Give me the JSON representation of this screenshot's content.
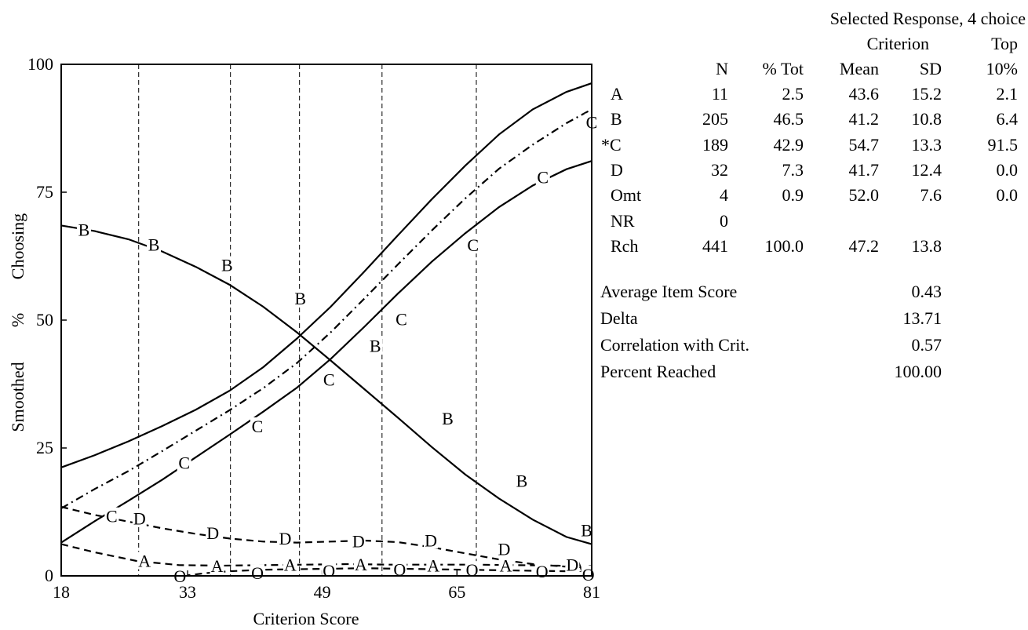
{
  "chart_data": {
    "type": "line",
    "xlabel": "Criterion Score",
    "ylabel_parts": [
      "Smoothed",
      "%",
      "Choosing"
    ],
    "xlim": [
      18,
      81
    ],
    "ylim": [
      0,
      100
    ],
    "x_ticks": [
      18,
      33,
      49,
      65,
      81
    ],
    "y_ticks": [
      0,
      25,
      50,
      75,
      100
    ],
    "vertical_dividers": [
      27.2,
      38.1,
      46.3,
      56.1,
      67.3
    ],
    "confidence_band": {
      "upper": [
        [
          18,
          21.2
        ],
        [
          22,
          23.6
        ],
        [
          26,
          26.3
        ],
        [
          30,
          29.3
        ],
        [
          34,
          32.5
        ],
        [
          38,
          36.2
        ],
        [
          42,
          40.8
        ],
        [
          46,
          46.4
        ],
        [
          50,
          52.6
        ],
        [
          54,
          59.5
        ],
        [
          58,
          66.6
        ],
        [
          62,
          73.6
        ],
        [
          66,
          80.2
        ],
        [
          70,
          86.3
        ],
        [
          74,
          91.2
        ],
        [
          78,
          94.6
        ],
        [
          81,
          96.3
        ]
      ],
      "lower": [
        [
          18,
          6.5
        ],
        [
          22,
          10.7
        ],
        [
          26,
          14.7
        ],
        [
          30,
          18.8
        ],
        [
          34,
          23.2
        ],
        [
          38,
          27.6
        ],
        [
          42,
          32.1
        ],
        [
          46,
          36.8
        ],
        [
          50,
          42.4
        ],
        [
          54,
          48.7
        ],
        [
          58,
          55.2
        ],
        [
          62,
          61.4
        ],
        [
          66,
          67.0
        ],
        [
          70,
          72.1
        ],
        [
          74,
          76.3
        ],
        [
          78,
          79.5
        ],
        [
          81,
          81.1
        ]
      ]
    },
    "series": [
      {
        "name": "A",
        "style": "dashed",
        "values": [
          [
            18,
            6.2
          ],
          [
            22,
            4.6
          ],
          [
            27,
            2.9
          ],
          [
            32,
            2.1
          ],
          [
            37,
            2.0
          ],
          [
            42,
            2.1
          ],
          [
            47,
            2.2
          ],
          [
            52,
            2.3
          ],
          [
            57,
            2.2
          ],
          [
            62,
            2.2
          ],
          [
            67,
            2.2
          ],
          [
            72,
            2.1
          ],
          [
            77,
            2.0
          ],
          [
            81,
            1.9
          ]
        ]
      },
      {
        "name": "B",
        "style": "solid",
        "values": [
          [
            18,
            68.5
          ],
          [
            22,
            67.4
          ],
          [
            26,
            65.8
          ],
          [
            30,
            63.4
          ],
          [
            34,
            60.4
          ],
          [
            38,
            56.9
          ],
          [
            42,
            52.6
          ],
          [
            46,
            47.6
          ],
          [
            50,
            42.1
          ],
          [
            54,
            36.5
          ],
          [
            58,
            30.9
          ],
          [
            62,
            25.2
          ],
          [
            66,
            19.8
          ],
          [
            70,
            15.1
          ],
          [
            74,
            11.0
          ],
          [
            78,
            7.6
          ],
          [
            81,
            6.2
          ]
        ]
      },
      {
        "name": "C",
        "style": "dashdot",
        "values": [
          [
            18,
            13.2
          ],
          [
            22,
            17.0
          ],
          [
            26,
            20.5
          ],
          [
            30,
            24.4
          ],
          [
            34,
            28.4
          ],
          [
            38,
            32.4
          ],
          [
            42,
            36.7
          ],
          [
            46,
            41.6
          ],
          [
            50,
            47.6
          ],
          [
            54,
            54.2
          ],
          [
            58,
            60.9
          ],
          [
            62,
            67.5
          ],
          [
            66,
            73.8
          ],
          [
            70,
            79.6
          ],
          [
            74,
            84.3
          ],
          [
            78,
            88.5
          ],
          [
            81,
            91.2
          ]
        ]
      },
      {
        "name": "D",
        "style": "dashed",
        "values": [
          [
            18,
            13.5
          ],
          [
            22,
            11.9
          ],
          [
            26,
            10.6
          ],
          [
            30,
            9.3
          ],
          [
            34,
            8.2
          ],
          [
            38,
            7.3
          ],
          [
            42,
            6.7
          ],
          [
            46,
            6.5
          ],
          [
            50,
            6.7
          ],
          [
            54,
            6.9
          ],
          [
            58,
            6.6
          ],
          [
            62,
            5.6
          ],
          [
            66,
            4.4
          ],
          [
            70,
            3.2
          ],
          [
            74,
            2.3
          ],
          [
            78,
            1.8
          ],
          [
            81,
            1.5
          ]
        ]
      },
      {
        "name": "O",
        "style": "dashed",
        "values": [
          [
            32.5,
            0.0
          ],
          [
            35,
            0.5
          ],
          [
            38,
            0.9
          ],
          [
            42,
            1.2
          ],
          [
            46,
            1.3
          ],
          [
            50,
            1.4
          ],
          [
            54,
            1.5
          ],
          [
            58,
            1.4
          ],
          [
            62,
            1.3
          ],
          [
            66,
            1.2
          ],
          [
            70,
            1.1
          ],
          [
            74,
            1.0
          ],
          [
            78,
            0.9
          ],
          [
            81,
            0.7
          ]
        ]
      }
    ],
    "markers": {
      "A": [
        [
          27.9,
          3.0
        ],
        [
          36.5,
          2.0
        ],
        [
          45.2,
          2.2
        ],
        [
          53.6,
          2.3
        ],
        [
          62.2,
          2.1
        ],
        [
          70.8,
          2.1
        ],
        [
          79.4,
          2.0
        ]
      ],
      "B": [
        [
          20.7,
          67.7
        ],
        [
          29.0,
          64.8
        ],
        [
          37.7,
          60.8
        ],
        [
          46.4,
          54.3
        ],
        [
          55.3,
          45.0
        ],
        [
          63.9,
          30.8
        ],
        [
          72.7,
          18.6
        ],
        [
          80.4,
          9.0
        ]
      ],
      "C": [
        [
          24.0,
          11.7
        ],
        [
          32.6,
          22.2
        ],
        [
          41.3,
          29.3
        ],
        [
          49.8,
          38.4
        ],
        [
          58.4,
          50.2
        ],
        [
          66.9,
          64.7
        ],
        [
          75.2,
          78.0
        ],
        [
          81.0,
          88.7
        ]
      ],
      "D": [
        [
          27.3,
          11.3
        ],
        [
          36.0,
          8.4
        ],
        [
          44.6,
          7.4
        ],
        [
          53.3,
          6.8
        ],
        [
          61.9,
          7.0
        ],
        [
          70.6,
          5.3
        ],
        [
          78.7,
          2.2
        ]
      ],
      "O": [
        [
          32.1,
          0.0
        ],
        [
          41.3,
          0.6
        ],
        [
          49.8,
          1.1
        ],
        [
          58.2,
          1.3
        ],
        [
          66.8,
          1.2
        ],
        [
          75.1,
          0.9
        ],
        [
          80.6,
          0.3
        ]
      ]
    }
  },
  "table": {
    "title": "Selected Response, 4 choice",
    "header_top": {
      "criterion": "Criterion",
      "top": "Top"
    },
    "header": {
      "n": "N",
      "pct_tot": "% Tot",
      "mean": "Mean",
      "sd": "SD",
      "top": "10%"
    },
    "rows": [
      {
        "label": "A",
        "n": "11",
        "pct_tot": "2.5",
        "mean": "43.6",
        "sd": "15.2",
        "top": "2.1"
      },
      {
        "label": "B",
        "n": "205",
        "pct_tot": "46.5",
        "mean": "41.2",
        "sd": "10.8",
        "top": "6.4"
      },
      {
        "label": "*C",
        "n": "189",
        "pct_tot": "42.9",
        "mean": "54.7",
        "sd": "13.3",
        "top": "91.5"
      },
      {
        "label": "D",
        "n": "32",
        "pct_tot": "7.3",
        "mean": "41.7",
        "sd": "12.4",
        "top": "0.0"
      },
      {
        "label": "Omt",
        "n": "4",
        "pct_tot": "0.9",
        "mean": "52.0",
        "sd": "7.6",
        "top": "0.0"
      },
      {
        "label": "NR",
        "n": "0",
        "pct_tot": "",
        "mean": "",
        "sd": "",
        "top": ""
      },
      {
        "label": "Rch",
        "n": "441",
        "pct_tot": "100.0",
        "mean": "47.2",
        "sd": "13.8",
        "top": ""
      }
    ]
  },
  "stats": [
    {
      "label": "Average Item Score",
      "value": "0.43"
    },
    {
      "label": "Delta",
      "value": "13.71"
    },
    {
      "label": "Correlation with Crit.",
      "value": "0.57"
    },
    {
      "label": "Percent Reached",
      "value": "100.00"
    }
  ]
}
